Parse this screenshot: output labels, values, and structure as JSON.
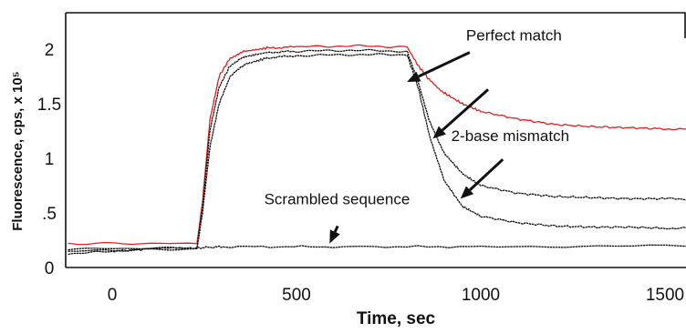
{
  "chart_data": {
    "type": "line",
    "title": "",
    "xlabel": "Time, sec",
    "ylabel": "Fluorescence, cps, x 10⁵",
    "xlim": [
      -120,
      1640
    ],
    "ylim": [
      0,
      2.3
    ],
    "x_ticks": [
      0,
      500,
      1000,
      1500
    ],
    "x_tick_labels": [
      "0",
      "500",
      "1000",
      "1500"
    ],
    "y_ticks": [
      0,
      0.5,
      1,
      1.5,
      2
    ],
    "y_tick_labels": [
      "0",
      ".5",
      "1",
      "1.5",
      "2"
    ],
    "grid": false,
    "legend": "none",
    "series": [
      {
        "color": "#e0201f",
        "x": [
          -120,
          230,
          245,
          265,
          290,
          320,
          360,
          420,
          500,
          650,
          800,
          830,
          860,
          900,
          950,
          1000,
          1100,
          1200,
          1300,
          1400,
          1500,
          1640
        ],
        "y": [
          0.22,
          0.22,
          0.6,
          1.35,
          1.75,
          1.92,
          1.98,
          2.01,
          2.02,
          2.03,
          2.02,
          1.85,
          1.72,
          1.6,
          1.5,
          1.43,
          1.36,
          1.31,
          1.29,
          1.28,
          1.27,
          1.26
        ]
      },
      {
        "color": "#111111",
        "x": [
          -120,
          230,
          245,
          265,
          290,
          320,
          360,
          420,
          500,
          650,
          800,
          830,
          860,
          900,
          950,
          1000,
          1100,
          1200,
          1300,
          1400,
          1500,
          1640
        ],
        "y": [
          0.17,
          0.18,
          0.55,
          1.25,
          1.65,
          1.85,
          1.93,
          1.97,
          1.98,
          1.99,
          1.98,
          1.7,
          1.35,
          1.05,
          0.86,
          0.75,
          0.68,
          0.65,
          0.64,
          0.63,
          0.63,
          0.62
        ]
      },
      {
        "color": "#111111",
        "x": [
          -120,
          230,
          245,
          265,
          290,
          320,
          360,
          420,
          500,
          650,
          800,
          830,
          860,
          900,
          950,
          1000,
          1100,
          1200,
          1300,
          1400,
          1500,
          1640
        ],
        "y": [
          0.15,
          0.17,
          0.5,
          1.1,
          1.5,
          1.75,
          1.86,
          1.92,
          1.94,
          1.95,
          1.95,
          1.65,
          1.22,
          0.8,
          0.56,
          0.47,
          0.41,
          0.38,
          0.37,
          0.37,
          0.36,
          0.36
        ]
      },
      {
        "color": "#111111",
        "x": [
          -120,
          0,
          100,
          230,
          300,
          600,
          1000,
          1640
        ],
        "y": [
          0.12,
          0.15,
          0.17,
          0.18,
          0.19,
          0.19,
          0.19,
          0.2
        ]
      }
    ],
    "annotations": [
      {
        "text": "Perfect match",
        "x": 1090,
        "y": 2.08
      },
      {
        "text": "2-base mismatch",
        "x": 1080,
        "y": 1.16
      },
      {
        "text": "Scrambled sequence",
        "x": 610,
        "y": 0.58
      }
    ],
    "arrows": [
      {
        "from": [
          970,
          1.97
        ],
        "to": [
          800,
          1.7
        ]
      },
      {
        "from": [
          1020,
          1.63
        ],
        "to": [
          870,
          1.18
        ]
      },
      {
        "from": [
          1060,
          0.99
        ],
        "to": [
          945,
          0.63
        ]
      },
      {
        "from": [
          612,
          0.38
        ],
        "to": [
          590,
          0.22
        ]
      }
    ]
  }
}
